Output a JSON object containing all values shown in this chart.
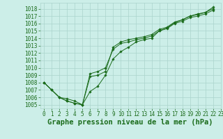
{
  "title": "Graphe pression niveau de la mer (hPa)",
  "background_color": "#cceee8",
  "grid_color": "#aad4cc",
  "line_color": "#1a6b1a",
  "marker_color": "#1a6b1a",
  "xlim": [
    -0.5,
    23
  ],
  "ylim": [
    1004.5,
    1018.8
  ],
  "yticks": [
    1005,
    1006,
    1007,
    1008,
    1009,
    1010,
    1011,
    1012,
    1013,
    1014,
    1015,
    1016,
    1017,
    1018
  ],
  "xticks": [
    0,
    1,
    2,
    3,
    4,
    5,
    6,
    7,
    8,
    9,
    10,
    11,
    12,
    13,
    14,
    15,
    16,
    17,
    18,
    19,
    20,
    21,
    22,
    23
  ],
  "series1_x": [
    0,
    1,
    2,
    3,
    4,
    5,
    6,
    7,
    8,
    9,
    10,
    11,
    12,
    13,
    14,
    15,
    16,
    17,
    18,
    19,
    20,
    21,
    22
  ],
  "series1": [
    1008,
    1007,
    1006,
    1005.8,
    1005.5,
    1005.0,
    1008.8,
    1009.0,
    1009.5,
    1012.8,
    1013.5,
    1013.8,
    1014.0,
    1014.2,
    1014.5,
    1015.2,
    1015.5,
    1016.2,
    1016.5,
    1017.0,
    1017.2,
    1017.5,
    1018.2
  ],
  "series2_x": [
    0,
    1,
    2,
    3,
    4,
    5,
    6,
    7,
    8,
    9,
    10,
    11,
    12,
    13,
    14,
    15,
    16,
    17,
    18,
    19,
    20,
    21,
    22
  ],
  "series2": [
    1008,
    1007,
    1006,
    1005.5,
    1005.2,
    1005.0,
    1009.2,
    1009.5,
    1010.0,
    1012.5,
    1013.3,
    1013.5,
    1013.8,
    1014.0,
    1014.3,
    1015.0,
    1015.3,
    1016.0,
    1016.3,
    1016.8,
    1017.0,
    1017.3,
    1017.8
  ],
  "series3_x": [
    0,
    1,
    2,
    3,
    4,
    5,
    6,
    7,
    8,
    9,
    10,
    11,
    12,
    13,
    14,
    15,
    16,
    17,
    18,
    19,
    20,
    21,
    22
  ],
  "series3": [
    1008,
    1007,
    1006,
    1005.5,
    1005.2,
    1005.0,
    1006.8,
    1007.5,
    1009.0,
    1011.2,
    1012.2,
    1012.8,
    1013.5,
    1013.8,
    1014.0,
    1015.0,
    1015.4,
    1016.1,
    1016.5,
    1017.0,
    1017.3,
    1017.5,
    1018.0
  ],
  "tick_fontsize": 5.5,
  "xlabel_fontsize": 7.5
}
